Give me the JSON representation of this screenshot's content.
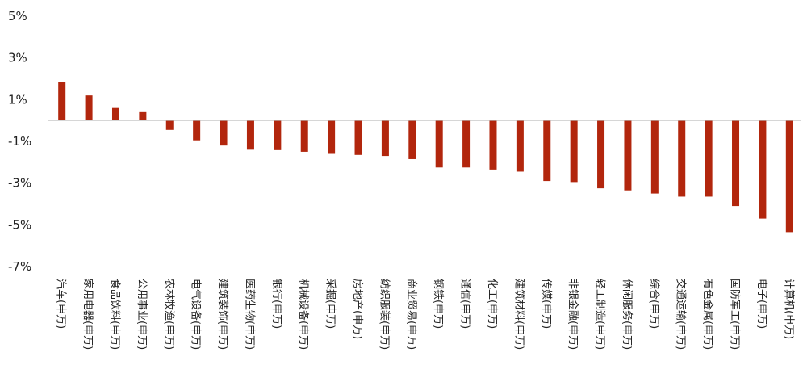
{
  "chart_data": {
    "type": "bar",
    "title": "",
    "xlabel": "",
    "ylabel": "",
    "ylim": [
      -7,
      5
    ],
    "yticks": [
      "5%",
      "3%",
      "1%",
      "-1%",
      "-3%",
      "-5%",
      "-7%"
    ],
    "ytick_values": [
      5,
      3,
      1,
      -1,
      -3,
      -5,
      -7
    ],
    "grid": false,
    "bar_color": "#b2260d",
    "categories": [
      "汽车(申万)",
      "家用电器(申万)",
      "食品饮料(申万)",
      "公用事业(申万)",
      "农林牧渔(申万)",
      "电气设备(申万)",
      "建筑装饰(申万)",
      "医药生物(申万)",
      "银行(申万)",
      "机械设备(申万)",
      "采掘(申万)",
      "房地产(申万)",
      "纺织服装(申万)",
      "商业贸易(申万)",
      "钢铁(申万)",
      "通信(申万)",
      "化工(申万)",
      "建筑材料(申万)",
      "传媒(申万)",
      "非银金融(申万)",
      "轻工制造(申万)",
      "休闲服务(申万)",
      "综合(申万)",
      "交通运输(申万)",
      "有色金属(申万)",
      "国防军工(申万)",
      "电子(申万)",
      "计算机(申万)"
    ],
    "values": [
      1.85,
      1.2,
      0.6,
      0.4,
      -0.45,
      -0.95,
      -1.2,
      -1.4,
      -1.42,
      -1.5,
      -1.6,
      -1.65,
      -1.7,
      -1.85,
      -2.25,
      -2.25,
      -2.35,
      -2.45,
      -2.9,
      -2.95,
      -3.25,
      -3.35,
      -3.5,
      -3.65,
      -3.65,
      -4.1,
      -4.7,
      -5.35
    ]
  }
}
